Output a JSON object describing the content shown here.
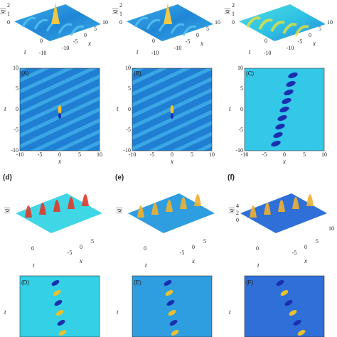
{
  "surface_axes": {
    "z_label": "|q|",
    "t_label": "t",
    "x_label": "x"
  },
  "row1": {
    "z_ticks": [
      "2",
      "1",
      "0"
    ],
    "t_ticks": [
      "0",
      "-10"
    ],
    "x_ticks": [
      "10",
      "5",
      "0",
      "-5",
      "-10"
    ]
  },
  "density_axes": {
    "x_label": "x",
    "t_label": "t",
    "x_ticks": [
      "-10",
      "-5",
      "0",
      "5",
      "10"
    ],
    "t_ticks": [
      "10",
      "5",
      "0",
      "-5",
      "-10"
    ]
  },
  "row2": {
    "labels": [
      "(A)",
      "(B)",
      "(C)"
    ]
  },
  "row3": {
    "labels": [
      "(d)",
      "(e)",
      "(f)"
    ],
    "f_z_ticks": [
      "4",
      "2",
      "0"
    ],
    "t_ticks": [
      "0"
    ],
    "x_ticks": [
      "5",
      "0",
      "-5"
    ],
    "f_x_edge": "10"
  },
  "row4": {
    "labels": [
      "(D)",
      "(E)",
      "(F)"
    ]
  }
}
